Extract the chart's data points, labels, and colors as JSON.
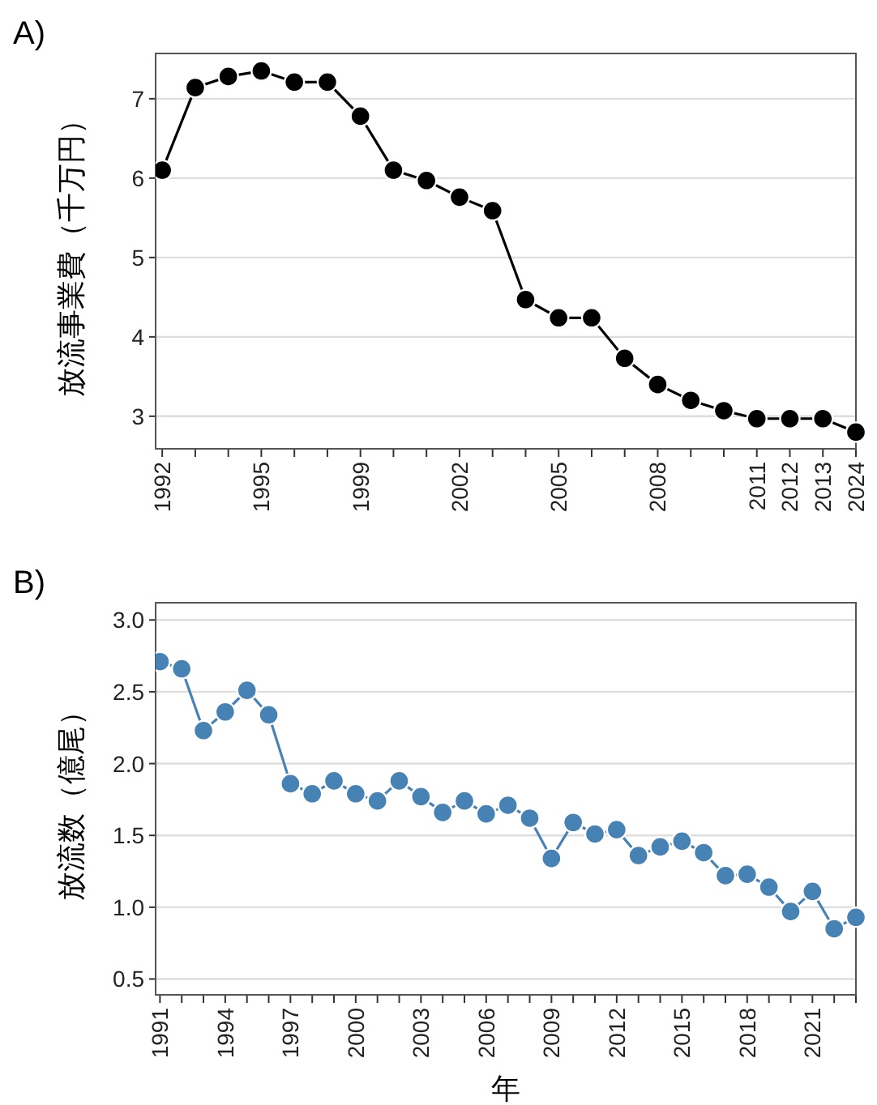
{
  "chart_data": [
    {
      "type": "line",
      "title": "A)",
      "ylabel": "放流事業費（千万円）",
      "categories": [
        "1992",
        null,
        null,
        "1995",
        null,
        null,
        "1999",
        null,
        null,
        "2002",
        null,
        null,
        "2005",
        null,
        null,
        "2008",
        null,
        null,
        "2011",
        "2012",
        "2013",
        "2024"
      ],
      "series": [
        {
          "color": "#000000",
          "values": [
            6.1,
            7.14,
            7.28,
            7.35,
            7.21,
            7.21,
            6.78,
            6.1,
            5.97,
            5.76,
            5.59,
            4.47,
            4.24,
            4.24,
            3.73,
            3.4,
            3.2,
            3.07,
            2.97,
            2.97,
            2.97,
            2.8
          ]
        }
      ],
      "ylim": [
        2.59,
        7.57
      ],
      "yticks": [
        3,
        4,
        5,
        6,
        7
      ],
      "grid": "y",
      "marker": "circle",
      "line_style": "solid"
    },
    {
      "type": "line",
      "title": "B)",
      "ylabel": "放流数（億尾）",
      "xlabel": "年",
      "categories": [
        "1991",
        null,
        null,
        "1994",
        null,
        null,
        "1997",
        null,
        null,
        "2000",
        null,
        null,
        "2003",
        null,
        null,
        "2006",
        null,
        null,
        "2009",
        null,
        null,
        "2012",
        null,
        null,
        "2015",
        null,
        null,
        "2018",
        null,
        null,
        "2021",
        null,
        null
      ],
      "series": [
        {
          "color": "#4682b4",
          "values": [
            2.71,
            2.66,
            2.23,
            2.36,
            2.51,
            2.34,
            1.86,
            1.79,
            1.88,
            1.79,
            1.74,
            1.88,
            1.77,
            1.66,
            1.74,
            1.65,
            1.71,
            1.62,
            1.34,
            1.59,
            1.51,
            1.54,
            1.36,
            1.42,
            1.46,
            1.38,
            1.22,
            1.23,
            1.14,
            0.97,
            1.11,
            0.85,
            0.93
          ]
        }
      ],
      "ylim": [
        0.39,
        3.12
      ],
      "yticks": [
        {
          "value": 0.5,
          "label": "0.5"
        },
        {
          "value": 1,
          "label": "1.0"
        },
        {
          "value": 1.5,
          "label": "1.5"
        },
        {
          "value": 2,
          "label": "2.0"
        },
        {
          "value": 2.5,
          "label": "2.5"
        },
        {
          "value": 3,
          "label": "3.0"
        }
      ],
      "grid": "y",
      "marker": "circle",
      "line_style": "solid"
    }
  ]
}
